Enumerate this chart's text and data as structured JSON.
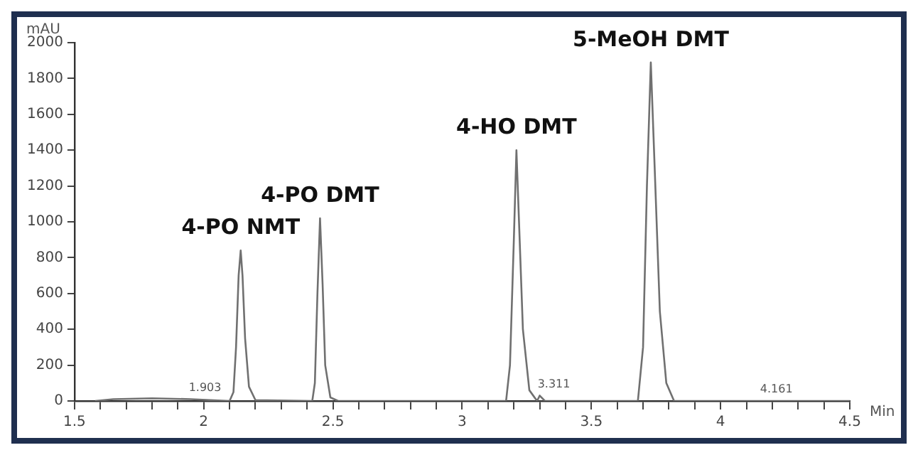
{
  "chart_data": {
    "type": "line",
    "xlabel": "Min",
    "ylabel": "mAU",
    "x": [
      1.58,
      1.65,
      1.8,
      1.95,
      2.1,
      2.115,
      2.125,
      2.135,
      2.143,
      2.15,
      2.16,
      2.175,
      2.2,
      2.42,
      2.43,
      2.44,
      2.45,
      2.46,
      2.47,
      2.49,
      2.52,
      3.0,
      3.17,
      3.185,
      3.2,
      3.21,
      3.22,
      3.235,
      3.26,
      3.29,
      3.3,
      3.32,
      3.68,
      3.7,
      3.715,
      3.73,
      3.745,
      3.765,
      3.79,
      3.82,
      4.5
    ],
    "series": [
      {
        "color": "#707070",
        "values": [
          0,
          10,
          15,
          10,
          0,
          50,
          300,
          700,
          840,
          700,
          350,
          80,
          5,
          0,
          100,
          600,
          1020,
          650,
          200,
          20,
          0,
          0,
          0,
          200,
          900,
          1400,
          1000,
          400,
          60,
          0,
          30,
          0,
          0,
          300,
          1200,
          1890,
          1300,
          500,
          100,
          0,
          0
        ]
      }
    ],
    "xlim": [
      1.5,
      4.5
    ],
    "xticks": [
      1.5,
      {
        "value": 1.6,
        "label": null
      },
      {
        "value": 1.7,
        "label": null
      },
      {
        "value": 1.8,
        "label": null
      },
      {
        "value": 1.9,
        "label": null
      },
      2,
      {
        "value": 2.1,
        "label": null
      },
      {
        "value": 2.2,
        "label": null
      },
      {
        "value": 2.3,
        "label": null
      },
      {
        "value": 2.4,
        "label": null
      },
      2.5,
      {
        "value": 2.6,
        "label": null
      },
      {
        "value": 2.7,
        "label": null
      },
      {
        "value": 2.8,
        "label": null
      },
      {
        "value": 2.9,
        "label": null
      },
      3,
      {
        "value": 3.1,
        "label": null
      },
      {
        "value": 3.2,
        "label": null
      },
      {
        "value": 3.3,
        "label": null
      },
      {
        "value": 3.4,
        "label": null
      },
      3.5,
      {
        "value": 3.6,
        "label": null
      },
      {
        "value": 3.7,
        "label": null
      },
      {
        "value": 3.8,
        "label": null
      },
      {
        "value": 3.9,
        "label": null
      },
      4,
      {
        "value": 4.1,
        "label": null
      },
      {
        "value": 4.2,
        "label": null
      },
      {
        "value": 4.3,
        "label": null
      },
      {
        "value": 4.4,
        "label": null
      },
      4.5
    ],
    "ylim": [
      0,
      2000
    ],
    "yticks": [
      0,
      200,
      400,
      600,
      800,
      1000,
      1200,
      1400,
      1600,
      1800,
      2000
    ],
    "grid": false,
    "legend": false,
    "marker": "none",
    "line_style": "solid",
    "annotations": [
      {
        "text": "4-PO NMT",
        "x": 2.143,
        "y": 840
      },
      {
        "text": "4-PO DMT",
        "x": 2.45,
        "y": 1020
      },
      {
        "text": "4-HO DMT",
        "x": 3.21,
        "y": 1400
      },
      {
        "text": "5-MeOH DMT",
        "x": 3.73,
        "y": 1890
      },
      {
        "text": "1.903",
        "x": 1.95,
        "y": 10
      },
      {
        "text": "3.311",
        "x": 3.3,
        "y": 30
      },
      {
        "text": "4.161",
        "x": 4.161,
        "y": 0
      }
    ]
  }
}
